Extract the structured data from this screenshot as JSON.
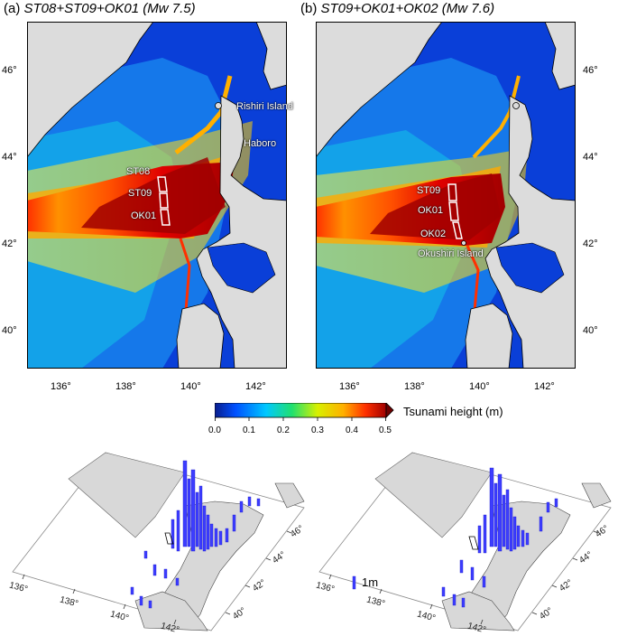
{
  "panels": [
    {
      "letter": "(a)",
      "title": "ST08+ST09+OK01 (Mw 7.5)",
      "faults": [
        "ST08",
        "ST09",
        "OK01"
      ],
      "place_labels": [
        "Rishiri Island",
        "Haboro"
      ]
    },
    {
      "letter": "(b)",
      "title": "ST09+OK01+OK02 (Mw 7.6)",
      "faults": [
        "ST09",
        "OK01",
        "OK02"
      ],
      "place_labels": [
        "Okushiri Island"
      ]
    }
  ],
  "chart_data": [
    {
      "type": "heatmap",
      "panel": "(a)",
      "title": "ST08+ST09+OK01 (Mw 7.5)",
      "x_ticks": [
        "136°",
        "138°",
        "140°",
        "142°"
      ],
      "x_tick_values": [
        136,
        138,
        140,
        142
      ],
      "y_ticks": [
        "46°",
        "44°",
        "42°",
        "40°"
      ],
      "y_tick_values": [
        46,
        44,
        42,
        40
      ],
      "xlim": [
        135,
        143
      ],
      "ylim": [
        39,
        47
      ],
      "colorscale_range": [
        0,
        0.5
      ]
    },
    {
      "type": "heatmap",
      "panel": "(b)",
      "title": "ST09+OK01+OK02 (Mw 7.6)",
      "x_ticks": [
        "136°",
        "138°",
        "140°",
        "142°"
      ],
      "x_tick_values": [
        136,
        138,
        140,
        142
      ],
      "y_ticks": [
        "46°",
        "44°",
        "42°",
        "40°"
      ],
      "y_tick_values": [
        46,
        44,
        42,
        40
      ],
      "xlim": [
        135,
        143
      ],
      "ylim": [
        39,
        47
      ],
      "colorscale_range": [
        0,
        0.5
      ]
    }
  ],
  "colorbar": {
    "label": "Tsunami height (m)",
    "ticks": [
      "0.0",
      "0.1",
      "0.2",
      "0.3",
      "0.4",
      "0.5"
    ],
    "range": [
      0,
      0.5
    ],
    "colors": [
      "#0a1e8c",
      "#0050ff",
      "#00c8ff",
      "#20e070",
      "#d8f000",
      "#ffb000",
      "#ff3000",
      "#a00000"
    ]
  },
  "perspective": {
    "lon_ticks": [
      "136°",
      "138°",
      "140°",
      "142°"
    ],
    "lat_ticks": [
      "40°",
      "42°",
      "44°",
      "46°"
    ],
    "scale_label": "1m"
  },
  "colors": {
    "land": "#dcdcdc",
    "bar": "#3d3dff",
    "fault_outline": "#ffffff"
  }
}
